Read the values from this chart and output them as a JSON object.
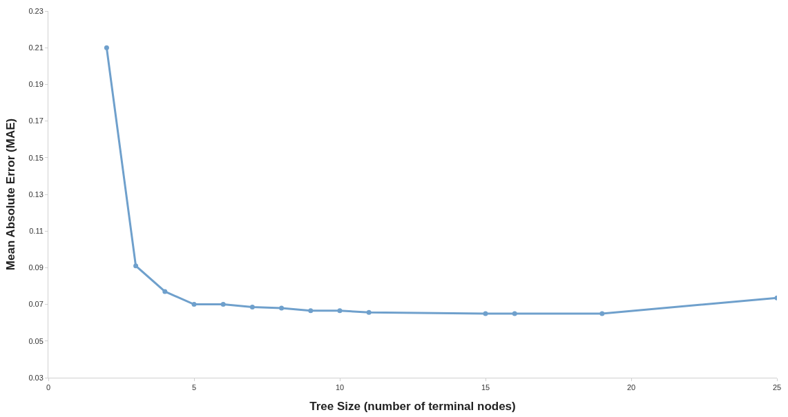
{
  "chart_data": {
    "type": "line",
    "xlabel": "Tree Size (number of terminal nodes)",
    "ylabel": "Mean Absolute Error (MAE)",
    "x": [
      2,
      3,
      4,
      5,
      6,
      7,
      8,
      9,
      10,
      11,
      15,
      16,
      19,
      25
    ],
    "series": [
      {
        "color": "#6fa0cc",
        "values": [
          0.21,
          0.091,
          0.077,
          0.07,
          0.07,
          0.0685,
          0.068,
          0.0666,
          0.0666,
          0.0656,
          0.065,
          0.065,
          0.065,
          0.0735
        ]
      }
    ],
    "xlim": [
      0,
      25
    ],
    "xticks": [
      0,
      5,
      10,
      15,
      20,
      25
    ],
    "ylim": [
      0.03,
      0.23
    ],
    "yticks": [
      0.03,
      0.05,
      0.07,
      0.09,
      0.11,
      0.13,
      0.15,
      0.17,
      0.19,
      0.21,
      0.23
    ],
    "marker": "circle",
    "line_style": "solid"
  }
}
